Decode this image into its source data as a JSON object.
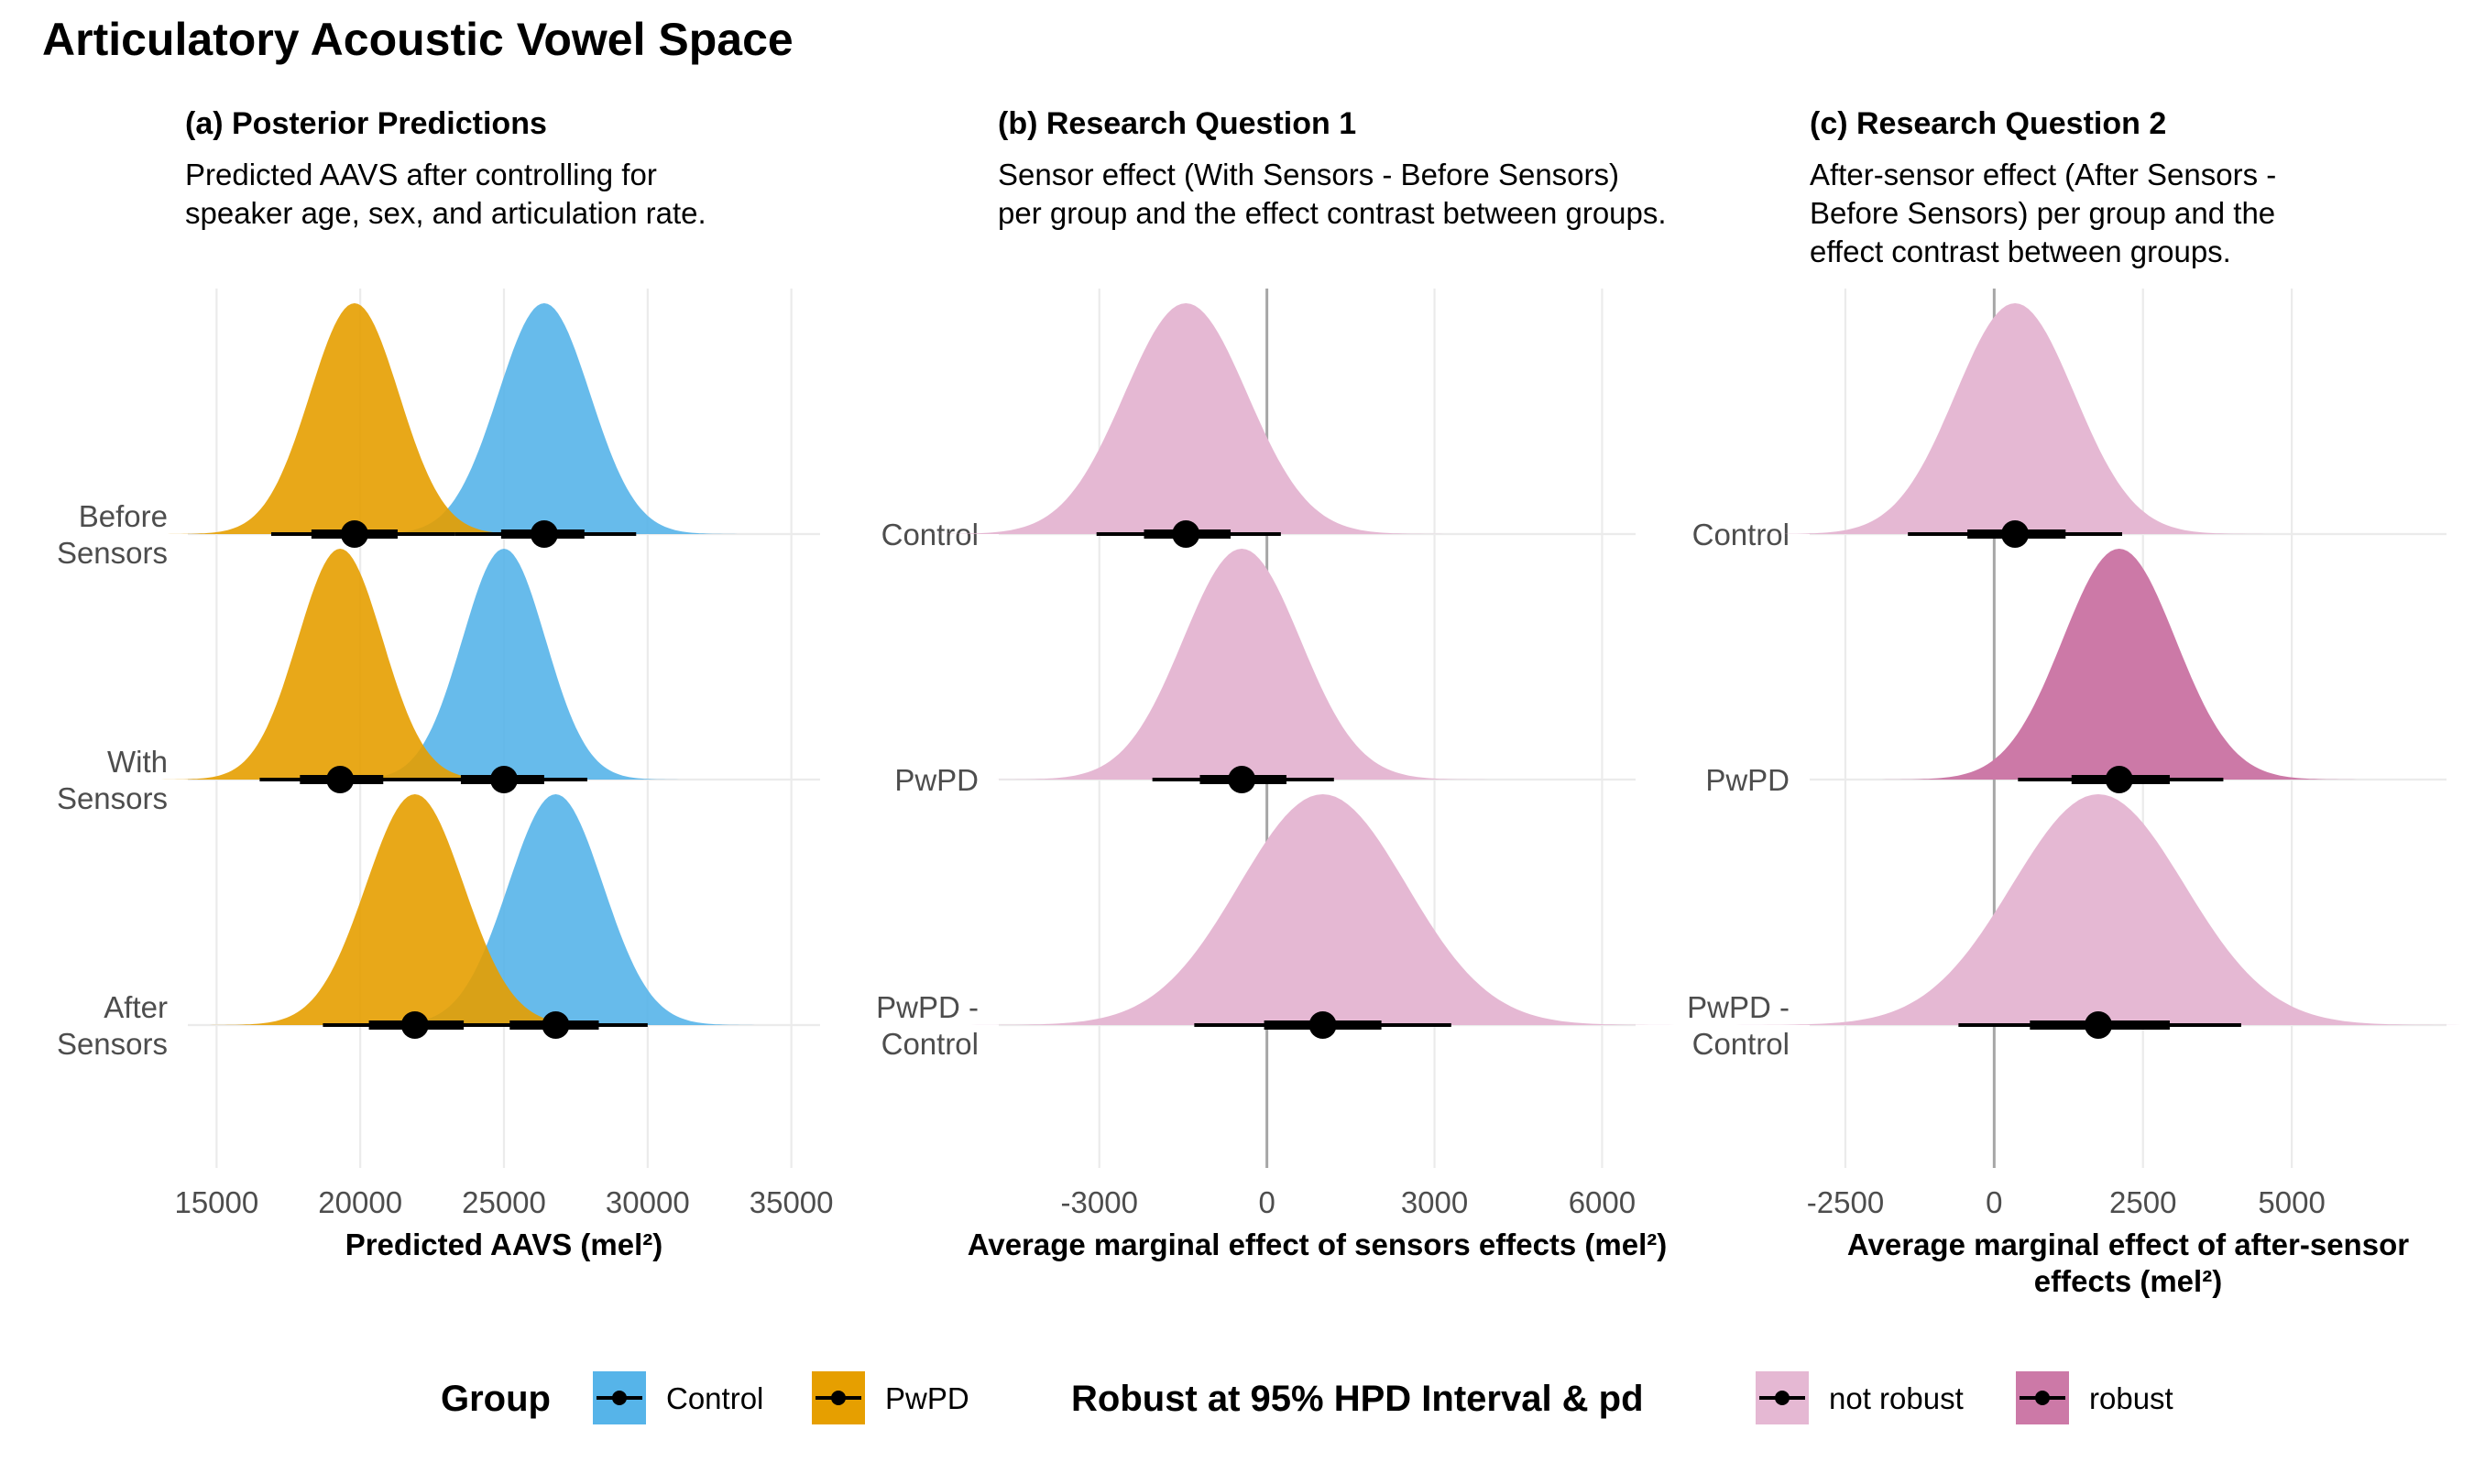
{
  "title": "Articulatory Acoustic Vowel Space",
  "panels": [
    {
      "title": "(a) Posterior Predictions",
      "subtitle": [
        "Predicted AAVS after controlling for",
        "speaker age, sex, and articulation rate."
      ],
      "xlabel": [
        "Predicted AAVS (mel²)"
      ],
      "ticks": [
        "15000",
        "20000",
        "25000",
        "30000",
        "35000"
      ],
      "categories": [
        "Before\nSensors",
        "With\nSensors",
        "After\nSensors"
      ]
    },
    {
      "title": "(b) Research Question 1",
      "subtitle": [
        "Sensor effect (With Sensors - Before Sensors)",
        "per group and the effect contrast between groups."
      ],
      "xlabel": [
        "Average marginal effect of sensors effects (mel²)"
      ],
      "ticks": [
        "-3000",
        "0",
        "3000",
        "6000"
      ],
      "categories": [
        "Control",
        "PwPD",
        "PwPD -\nControl"
      ]
    },
    {
      "title": "(c) Research Question 2",
      "subtitle": [
        "After-sensor effect (After Sensors -",
        "Before Sensors) per group and the",
        "effect contrast between groups."
      ],
      "xlabel": [
        "Average marginal effect of after-sensor",
        "effects (mel²)"
      ],
      "ticks": [
        "-2500",
        "0",
        "2500",
        "5000"
      ],
      "categories": [
        "Control",
        "PwPD",
        "PwPD -\nControl"
      ]
    }
  ],
  "legend": {
    "group_title": "Group",
    "group_items": [
      {
        "label": "Control",
        "color": "#56B4E9"
      },
      {
        "label": "PwPD",
        "color": "#E69F00"
      }
    ],
    "robust_title": "Robust at 95% HPD Interval & pd",
    "robust_items": [
      {
        "label": "not robust",
        "color": "#E5B8D3"
      },
      {
        "label": "robust",
        "color": "#CC79A7"
      }
    ]
  },
  "colors": {
    "control": "#56B4E9",
    "pwpd": "#E69F00",
    "not_robust": "#E5B8D3",
    "robust": "#CC79A7",
    "grid": "#EBEBEB",
    "zero_line": "#A6A6A6"
  },
  "chart_data": [
    {
      "type": "halfeye",
      "title": "(a) Posterior Predictions",
      "xlabel": "Predicted AAVS (mel²)",
      "xlim": [
        14000,
        36000
      ],
      "xticks": [
        15000,
        20000,
        25000,
        30000,
        35000
      ],
      "grid": true,
      "categories": [
        "Before Sensors",
        "With Sensors",
        "After Sensors"
      ],
      "series": [
        {
          "name": "Control",
          "color": "#56B4E9",
          "items": [
            {
              "category": "Before Sensors",
              "median": 26400,
              "sd": 1600,
              "ci66": [
                24900,
                27800
              ],
              "ci95": [
                23300,
                29600
              ]
            },
            {
              "category": "With Sensors",
              "median": 25000,
              "sd": 1450,
              "ci66": [
                23500,
                26400
              ],
              "ci95": [
                22100,
                27900
              ]
            },
            {
              "category": "After Sensors",
              "median": 26800,
              "sd": 1650,
              "ci66": [
                25200,
                28300
              ],
              "ci95": [
                23600,
                30000
              ]
            }
          ]
        },
        {
          "name": "PwPD",
          "color": "#E69F00",
          "items": [
            {
              "category": "Before Sensors",
              "median": 19800,
              "sd": 1550,
              "ci66": [
                18300,
                21300
              ],
              "ci95": [
                16900,
                23300
              ]
            },
            {
              "category": "With Sensors",
              "median": 19300,
              "sd": 1480,
              "ci66": [
                17900,
                20800
              ],
              "ci95": [
                16500,
                22500
              ]
            },
            {
              "category": "After Sensors",
              "median": 21900,
              "sd": 1700,
              "ci66": [
                20300,
                23600
              ],
              "ci95": [
                18700,
                25300
              ]
            }
          ]
        }
      ]
    },
    {
      "type": "halfeye",
      "title": "(b) Research Question 1",
      "xlabel": "Average marginal effect of sensors effects (mel²)",
      "xlim": [
        -4800,
        6600
      ],
      "xticks": [
        -3000,
        0,
        3000,
        6000
      ],
      "grid": true,
      "zero_line": true,
      "categories": [
        "Control",
        "PwPD",
        "PwPD - Control"
      ],
      "series": [
        {
          "items": [
            {
              "category": "Control",
              "median": -1450,
              "sd": 1100,
              "ci66": [
                -2200,
                -650
              ],
              "ci95": [
                -3050,
                250
              ],
              "robust": false
            },
            {
              "category": "PwPD",
              "median": -450,
              "sd": 1050,
              "ci66": [
                -1200,
                350
              ],
              "ci95": [
                -2050,
                1200
              ],
              "robust": false
            },
            {
              "category": "PwPD - Control",
              "median": 1000,
              "sd": 1500,
              "ci66": [
                -50,
                2050
              ],
              "ci95": [
                -1300,
                3300
              ],
              "robust": false
            }
          ]
        }
      ]
    },
    {
      "type": "halfeye",
      "title": "(c) Research Question 2",
      "xlabel": "Average marginal effect of after-sensor effects (mel²)",
      "xlim": [
        -3100,
        7600
      ],
      "xticks": [
        -2500,
        0,
        2500,
        5000
      ],
      "grid": true,
      "zero_line": true,
      "categories": [
        "Control",
        "PwPD",
        "PwPD - Control"
      ],
      "series": [
        {
          "items": [
            {
              "category": "Control",
              "median": 350,
              "sd": 1000,
              "ci66": [
                -450,
                1200
              ],
              "ci95": [
                -1450,
                2150
              ],
              "robust": false
            },
            {
              "category": "PwPD",
              "median": 2100,
              "sd": 950,
              "ci66": [
                1300,
                2950
              ],
              "ci95": [
                400,
                3850
              ],
              "robust": true
            },
            {
              "category": "PwPD - Control",
              "median": 1750,
              "sd": 1450,
              "ci66": [
                600,
                2950
              ],
              "ci95": [
                -600,
                4150
              ],
              "robust": false
            }
          ]
        }
      ]
    }
  ]
}
